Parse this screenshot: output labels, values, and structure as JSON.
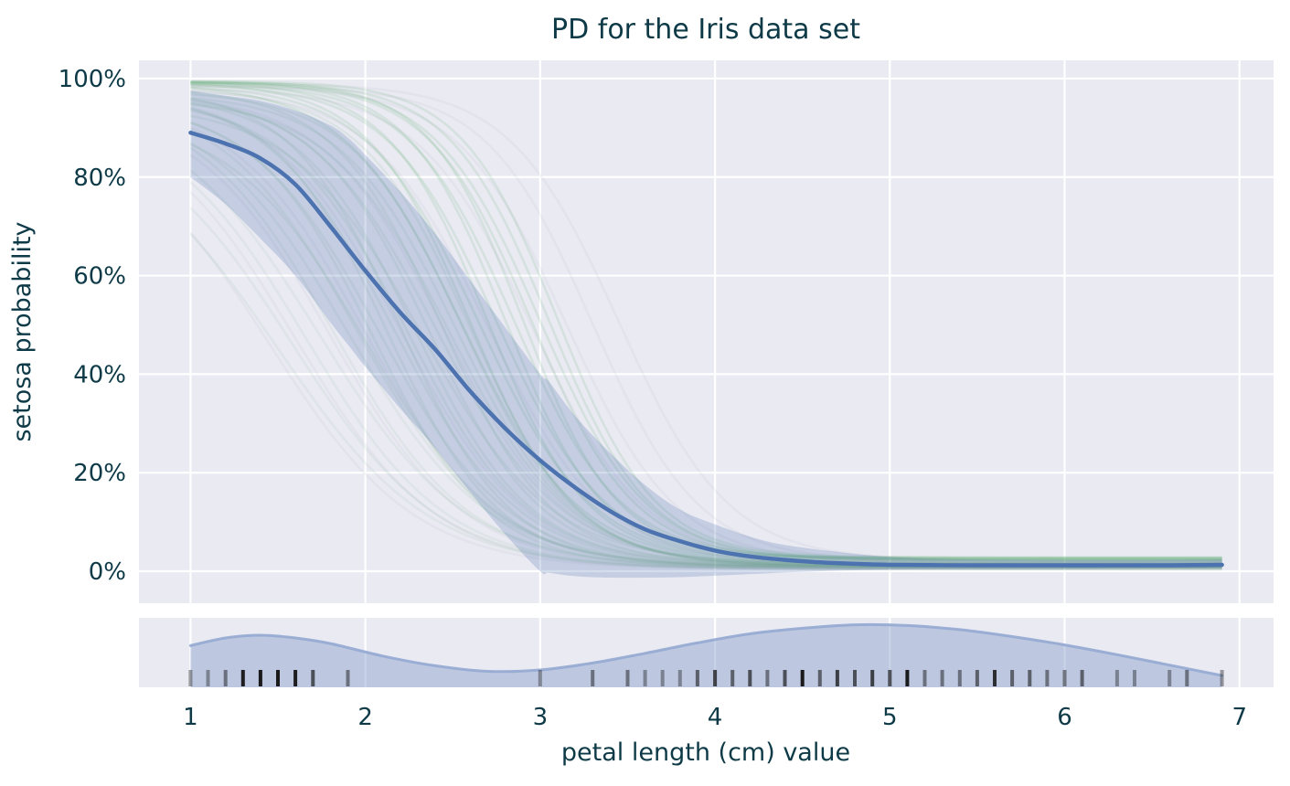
{
  "figure": {
    "background": "#ffffff",
    "axes_background": "#eaeaf2",
    "grid_color": "#ffffff",
    "text_color": "#0e3a47"
  },
  "chart_data": {
    "type": "line",
    "title": "PD for the Iris data set",
    "xlabel": "petal length (cm) value",
    "ylabel": "setosa probability",
    "xlim": [
      0.705,
      7.195
    ],
    "ylim_pct": [
      -6.49,
      103.7
    ],
    "x_ticks": [
      1,
      2,
      3,
      4,
      5,
      6,
      7
    ],
    "y_ticks_pct": [
      0,
      20,
      40,
      60,
      80,
      100
    ],
    "y_tick_labels": [
      "0%",
      "20%",
      "40%",
      "60%",
      "80%",
      "100%"
    ],
    "grid": true,
    "legend": false,
    "pd_mean": {
      "name": "average partial dependence",
      "color": "#4c72b0",
      "width": 4.5,
      "x": [
        1,
        1.2,
        1.4,
        1.6,
        1.8,
        2,
        2.2,
        2.4,
        2.6,
        2.8,
        3,
        3.2,
        3.4,
        3.6,
        3.8,
        4,
        4.2,
        4.4,
        4.6,
        4.8,
        5,
        5.5,
        6,
        6.5,
        6.9
      ],
      "y_pct": [
        89,
        86.8,
        83.8,
        78.5,
        70,
        61,
        52.5,
        45,
        36.5,
        29,
        22.5,
        17,
        12.2,
        8.5,
        6.1,
        4.2,
        3.0,
        2.3,
        1.8,
        1.5,
        1.3,
        1.2,
        1.2,
        1.2,
        1.3
      ]
    },
    "pd_band": {
      "name": "partial dependence confidence band",
      "color": "#4c72b0",
      "opacity": 0.24,
      "x": [
        1,
        1.2,
        1.4,
        1.6,
        1.8,
        1.9,
        2,
        2.2,
        2.4,
        2.6,
        2.8,
        3,
        3.05,
        3.2,
        3.4,
        3.6,
        3.8,
        4,
        4.25,
        4.5,
        5,
        5.5,
        6,
        6.5,
        6.9
      ],
      "upper_pct": [
        97.5,
        96.5,
        95.5,
        93.5,
        90.5,
        88,
        84.5,
        77,
        68.5,
        59,
        49.5,
        40,
        38.5,
        31.5,
        24,
        17.5,
        12.5,
        9.5,
        6.5,
        4.8,
        2.9,
        2.4,
        2.3,
        2.3,
        2.4
      ],
      "lower_pct": [
        80,
        74.5,
        67.5,
        60,
        50.5,
        46,
        41.5,
        33,
        25,
        16,
        7.5,
        0,
        -0.3,
        -1.0,
        -1.3,
        -1.3,
        -1.2,
        -0.9,
        -0.5,
        -0.1,
        0.3,
        0.4,
        0.45,
        0.5,
        0.55
      ]
    },
    "ice_lines": {
      "name": "individual conditional expectation curves",
      "x_range": [
        1.0,
        6.9
      ],
      "model": "y_fraction = base + (start - base) / (1 + exp(-k * (mid - x)))",
      "param_format": [
        "mid",
        "k",
        "start",
        "base"
      ],
      "groups": [
        {
          "name": "ice-top-cluster",
          "color": "#55a868",
          "opacity": 0.14,
          "width": 2.6,
          "params": [
            [
              2.55,
              3.0,
              0.99,
              0.016
            ],
            [
              2.6,
              3.4,
              0.992,
              0.018
            ],
            [
              2.65,
              3.1,
              0.988,
              0.02
            ],
            [
              2.7,
              3.5,
              0.993,
              0.022
            ],
            [
              2.75,
              3.2,
              0.99,
              0.024
            ],
            [
              2.8,
              3.6,
              0.994,
              0.026
            ],
            [
              2.85,
              3.3,
              0.991,
              0.027
            ],
            [
              2.9,
              3.7,
              0.995,
              0.028
            ],
            [
              2.95,
              3.4,
              0.992,
              0.024
            ],
            [
              3.0,
              3.3,
              0.994,
              0.022
            ],
            [
              3.05,
              3.5,
              0.993,
              0.025
            ],
            [
              3.1,
              3.6,
              0.995,
              0.028
            ]
          ]
        },
        {
          "name": "ice-middle-cluster",
          "color": "#55a868",
          "opacity": 0.09,
          "width": 2.6,
          "params": [
            [
              2.0,
              2.6,
              0.93,
              0.007
            ],
            [
              2.04,
              3.0,
              0.95,
              0.008
            ],
            [
              2.08,
              2.7,
              0.96,
              0.009
            ],
            [
              2.12,
              3.1,
              0.97,
              0.01
            ],
            [
              2.16,
              2.8,
              0.975,
              0.011
            ],
            [
              2.2,
              3.2,
              0.98,
              0.012
            ],
            [
              2.24,
              2.9,
              0.96,
              0.013
            ],
            [
              2.28,
              3.0,
              0.97,
              0.014
            ],
            [
              2.32,
              2.7,
              0.95,
              0.015
            ],
            [
              2.36,
              3.1,
              0.965,
              0.016
            ],
            [
              2.4,
              2.8,
              0.975,
              0.014
            ],
            [
              2.44,
              3.2,
              0.98,
              0.013
            ],
            [
              2.48,
              2.9,
              0.96,
              0.012
            ],
            [
              2.52,
              3.0,
              0.97,
              0.011
            ],
            [
              2.56,
              3.1,
              0.975,
              0.01
            ],
            [
              2.6,
              3.2,
              0.98,
              0.009
            ]
          ]
        },
        {
          "name": "ice-low-cluster",
          "color": "#55a868",
          "opacity": 0.08,
          "width": 2.6,
          "params": [
            [
              1.5,
              2.3,
              0.9,
              0.004
            ],
            [
              1.58,
              2.4,
              0.92,
              0.005
            ],
            [
              1.66,
              2.5,
              0.94,
              0.006
            ],
            [
              1.74,
              2.4,
              0.95,
              0.007
            ],
            [
              1.82,
              2.6,
              0.96,
              0.008
            ],
            [
              1.9,
              2.5,
              0.96,
              0.009
            ],
            [
              1.95,
              2.6,
              0.97,
              0.01
            ]
          ]
        },
        {
          "name": "ice-gray-cluster",
          "color": "#8f9aa8",
          "opacity": 0.08,
          "width": 2.6,
          "params": [
            [
              1.45,
              2.4,
              0.92,
              0.004
            ],
            [
              1.6,
              2.5,
              0.94,
              0.005
            ],
            [
              1.8,
              2.6,
              0.95,
              0.006
            ],
            [
              2.0,
              2.7,
              0.96,
              0.008
            ],
            [
              2.2,
              2.8,
              0.97,
              0.01
            ],
            [
              2.45,
              2.9,
              0.97,
              0.012
            ],
            [
              2.7,
              3.0,
              0.98,
              0.014
            ],
            [
              2.95,
              3.1,
              0.98,
              0.016
            ],
            [
              3.15,
              3.2,
              0.985,
              0.018
            ],
            [
              3.3,
              3.3,
              0.985,
              0.02
            ],
            [
              3.45,
              3.2,
              0.99,
              0.022
            ]
          ]
        }
      ]
    },
    "rug": {
      "name": "petal length deciles / observations rug",
      "color": "#111111",
      "values": [
        1.0,
        1.1,
        1.2,
        1.3,
        1.4,
        1.5,
        1.6,
        1.7,
        1.9,
        3.0,
        3.3,
        3.5,
        3.6,
        3.7,
        3.8,
        3.9,
        4.0,
        4.1,
        4.2,
        4.3,
        4.4,
        4.5,
        4.6,
        4.7,
        4.8,
        4.9,
        5.0,
        5.1,
        5.2,
        5.3,
        5.4,
        5.5,
        5.6,
        5.7,
        5.8,
        5.9,
        6.0,
        6.1,
        6.3,
        6.4,
        6.6,
        6.7,
        6.9
      ],
      "counts": [
        1,
        1,
        2,
        7,
        13,
        13,
        7,
        4,
        2,
        1,
        2,
        2,
        1,
        1,
        1,
        3,
        5,
        3,
        4,
        2,
        4,
        8,
        3,
        5,
        4,
        5,
        4,
        8,
        2,
        2,
        2,
        3,
        6,
        3,
        3,
        2,
        2,
        3,
        1,
        1,
        1,
        2,
        1
      ]
    },
    "density": {
      "name": "petal length kernel density estimate",
      "fill": "#7e96c8",
      "fill_opacity": 0.42,
      "line": "#93a8d2",
      "x": [
        1.0,
        1.2,
        1.4,
        1.6,
        1.8,
        2.1,
        2.4,
        2.7,
        3.0,
        3.3,
        3.6,
        3.9,
        4.2,
        4.5,
        4.8,
        5.1,
        5.4,
        5.7,
        6.0,
        6.3,
        6.6,
        6.9
      ],
      "height": [
        0.6,
        0.71,
        0.75,
        0.71,
        0.63,
        0.45,
        0.31,
        0.23,
        0.25,
        0.35,
        0.49,
        0.64,
        0.77,
        0.85,
        0.9,
        0.89,
        0.83,
        0.73,
        0.61,
        0.47,
        0.32,
        0.17
      ]
    }
  }
}
